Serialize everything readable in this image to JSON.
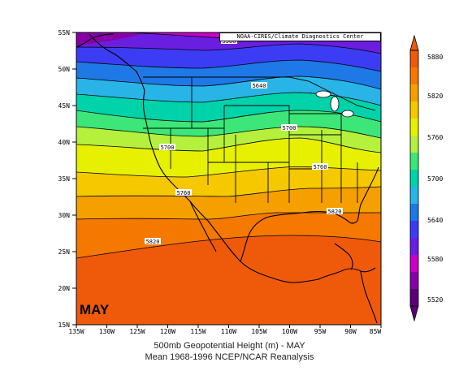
{
  "credit": "NOAA-CIRES/Climate Diagnostics Center",
  "month": "MAY",
  "caption": {
    "line1": "500mb Geopotential Height (m) - MAY",
    "line2": "Mean 1968-1996  NCEP/NCAR Reanalysis"
  },
  "axes": {
    "lat_labels": [
      "55N",
      "50N",
      "45N",
      "40N",
      "35N",
      "30N",
      "25N",
      "20N",
      "15N"
    ],
    "lon_labels": [
      "135W",
      "130W",
      "125W",
      "120W",
      "115W",
      "110W",
      "105W",
      "100W",
      "95W",
      "90W",
      "85W"
    ]
  },
  "colorbar": {
    "labels": [
      "5880",
      "5820",
      "5760",
      "5700",
      "5640",
      "5580",
      "5520"
    ],
    "colors": [
      "#5a0078",
      "#8800a8",
      "#c800c8",
      "#6a1ee0",
      "#3c3cf5",
      "#1e78e6",
      "#28b4e6",
      "#00d2aa",
      "#3ce678",
      "#b4f03c",
      "#e6f000",
      "#f5c800",
      "#f5a000",
      "#f57800",
      "#ee5a0a"
    ]
  },
  "contour_labels": [
    {
      "text": "5580"
    },
    {
      "text": "5640"
    },
    {
      "text": "5700"
    },
    {
      "text": "5700"
    },
    {
      "text": "5760"
    },
    {
      "text": "5760"
    },
    {
      "text": "5820"
    },
    {
      "text": "5820"
    }
  ]
}
